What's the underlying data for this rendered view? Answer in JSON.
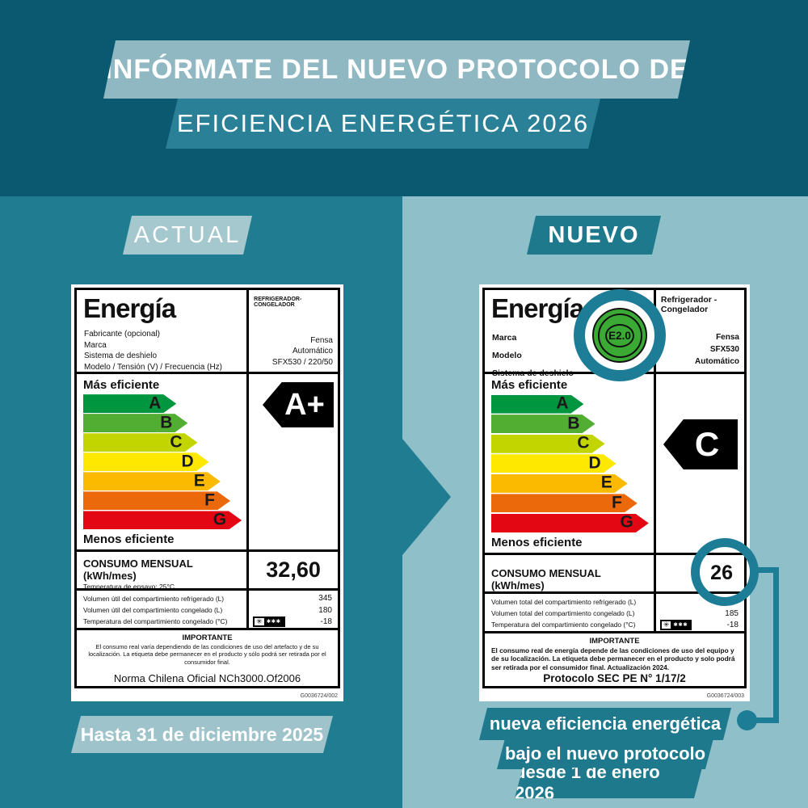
{
  "header": {
    "line1": "INFÓRMATE DEL NUEVO PROTOCOLO DE",
    "line2": "EFICIENCIA ENERGÉTICA 2026"
  },
  "sections": {
    "left_title": "ACTUAL",
    "right_title": "NUEVO"
  },
  "scale": [
    {
      "grade": "A",
      "color": "#00963F"
    },
    {
      "grade": "B",
      "color": "#52AE32"
    },
    {
      "grade": "C",
      "color": "#C3D500"
    },
    {
      "grade": "D",
      "color": "#FFE800"
    },
    {
      "grade": "E",
      "color": "#FBBA00"
    },
    {
      "grade": "F",
      "color": "#EB690B"
    },
    {
      "grade": "G",
      "color": "#E30613"
    }
  ],
  "star_badge": {
    "single": "✳",
    "triple": "✱✱✱"
  },
  "left_label": {
    "title": "Energía",
    "category": "REFRIGERADOR-CONGELADOR",
    "fields": {
      "f0": "Fabricante (opcional)",
      "f1": "Marca",
      "f2": "Sistema de deshielo",
      "f3": "Modelo / Tensión (V) / Frecuencia (Hz)"
    },
    "values": {
      "v0": "Fensa",
      "v1": "Automático",
      "v2": "SFX530 / 220/50"
    },
    "scale_top": "Más eficiente",
    "scale_bottom": "Menos eficiente",
    "rating": "A+",
    "consumption_label": "CONSUMO MENSUAL (kWh/mes)",
    "consumption_sub": "Temperatura de ensayo: 25°C",
    "consumption_value": "32,60",
    "rows": {
      "r0": {
        "label": "Volumen útil del compartimiento refrigerado (L)",
        "value": "345"
      },
      "r1": {
        "label": "Volumen útil del compartimiento congelado (L)",
        "value": "180"
      },
      "r2": {
        "label": "Temperatura del compartimiento congelado (°C)",
        "value": "-18"
      }
    },
    "important_title": "IMPORTANTE",
    "important_body": "El consumo real varía dependiendo de las condiciones de uso del artefacto y de su localización. La etiqueta debe permanecer en el producto y sólo podrá ser retirada por el consumidor final.",
    "norm": "Norma Chilena Oficial NCh3000.Of2006",
    "code": "G0036724/002",
    "footer": "Hasta 31 de diciembre 2025"
  },
  "right_label": {
    "title": "Energía",
    "category": "Refrigerador - Congelador",
    "badge": "E2.0",
    "fields": {
      "f0": "Marca",
      "f1": "Modelo",
      "f2": "Sistema de deshielo"
    },
    "values": {
      "v0": "Fensa",
      "v1": "SFX530",
      "v2": "Automático"
    },
    "scale_top": "Más eficiente",
    "scale_bottom": "Menos eficiente",
    "rating": "C",
    "consumption_label": "CONSUMO MENSUAL (kWh/mes)",
    "consumption_value": "26",
    "rows": {
      "r0": {
        "label": "Volumen total del compartimiento refrigerado (L)",
        "value": ""
      },
      "r1": {
        "label": "Volumen total del compartimiento congelado (L)",
        "value": "185"
      },
      "r2": {
        "label": "Temperatura del compartimiento congelado (°C)",
        "value": "-18"
      }
    },
    "important_title": "IMPORTANTE",
    "important_body": "El consumo real de energía depende de las condiciones de uso del equipo y de su localización. La etiqueta debe permanecer en el producto y solo podrá ser retirada por el consumidor final. Actualización 2024.",
    "protocol": "Protocolo SEC PE N° 1/17/2",
    "code": "G0036724/003",
    "footer": {
      "line1": "nueva eficiencia energética",
      "line2": "bajo el nuevo protocolo",
      "line3": "desde 1 de enero 2026"
    }
  },
  "colors": {
    "background_top": "#0A5971",
    "panel_left": "#207D91",
    "panel_right": "#8FBFC8",
    "accent_teal": "#1E798D",
    "ribbon_light": "#8FB8C2",
    "highlight_ring": "#1E7D96",
    "badge_green": "#3AAA35",
    "rating_arrow_black": "#000000"
  }
}
